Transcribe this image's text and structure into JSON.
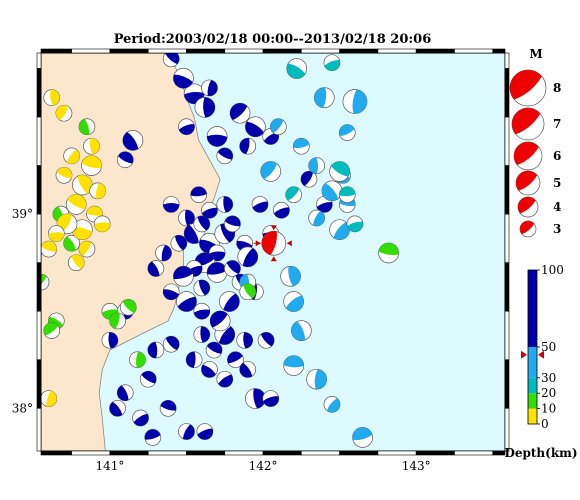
{
  "title": "Period:2003/02/18 00:00--2013/02/18 20:06",
  "map": {
    "lon_range": [
      140.55,
      143.58
    ],
    "lat_range": [
      37.78,
      39.83
    ],
    "lon_ticks": [
      {
        "value": 141,
        "label": "141°"
      },
      {
        "value": 142,
        "label": "142°"
      },
      {
        "value": 143,
        "label": "143°"
      }
    ],
    "lat_ticks": [
      {
        "value": 39,
        "label": "39°"
      },
      {
        "value": 38,
        "label": "38°"
      }
    ],
    "land_color": "#fde7cc",
    "sea_color": "#dcfaff",
    "coastline": [
      [
        141.38,
        39.83
      ],
      [
        141.45,
        39.72
      ],
      [
        141.5,
        39.6
      ],
      [
        141.55,
        39.5
      ],
      [
        141.58,
        39.38
      ],
      [
        141.65,
        39.28
      ],
      [
        141.72,
        39.18
      ],
      [
        141.68,
        39.08
      ],
      [
        141.63,
        39.0
      ],
      [
        141.55,
        38.92
      ],
      [
        141.48,
        38.82
      ],
      [
        141.48,
        38.72
      ],
      [
        141.45,
        38.62
      ],
      [
        141.42,
        38.52
      ],
      [
        141.38,
        38.45
      ],
      [
        141.2,
        38.38
      ],
      [
        141.0,
        38.3
      ],
      [
        140.95,
        38.2
      ],
      [
        140.93,
        38.08
      ],
      [
        140.95,
        37.95
      ],
      [
        140.97,
        37.78
      ]
    ]
  },
  "magnitude_legend": {
    "title": "M",
    "entries": [
      {
        "label": "8",
        "magnitude": 8
      },
      {
        "label": "7",
        "magnitude": 7
      },
      {
        "label": "6",
        "magnitude": 6
      },
      {
        "label": "5",
        "magnitude": 5
      },
      {
        "label": "4",
        "magnitude": 4
      },
      {
        "label": "3",
        "magnitude": 3
      }
    ],
    "color": "#ee0000"
  },
  "depth_scale": {
    "title": "Depth(km)",
    "ticks": [
      {
        "value": 100,
        "label": "100"
      },
      {
        "value": 50,
        "label": "50"
      },
      {
        "value": 30,
        "label": "30"
      },
      {
        "value": 20,
        "label": "20"
      },
      {
        "value": 10,
        "label": "10"
      },
      {
        "value": 0,
        "label": "0"
      }
    ],
    "bands": [
      {
        "from": 0,
        "to": 10,
        "color": "#ffe100"
      },
      {
        "from": 10,
        "to": 20,
        "color": "#33dd00"
      },
      {
        "from": 20,
        "to": 30,
        "color": "#00bbbb"
      },
      {
        "from": 30,
        "to": 50,
        "color": "#22aaee"
      },
      {
        "from": 50,
        "to": 100,
        "color": "#0000aa"
      }
    ],
    "marker_depth": 45,
    "marker_color": "#cc0000"
  },
  "chart_data": {
    "type": "scatter",
    "x_unit": "longitude (°E)",
    "y_unit": "latitude (°N)",
    "series": [
      {
        "color": "#0000aa",
        "points": [
          [
            141.55,
            39.62,
            4
          ],
          [
            141.48,
            39.7,
            4
          ],
          [
            141.4,
            39.8,
            3
          ],
          [
            141.62,
            39.55,
            4
          ],
          [
            141.5,
            39.45,
            3
          ],
          [
            141.7,
            39.4,
            4
          ],
          [
            141.75,
            39.3,
            3
          ],
          [
            141.85,
            39.52,
            4
          ],
          [
            141.95,
            39.45,
            4
          ],
          [
            142.05,
            39.4,
            3
          ],
          [
            141.65,
            39.65,
            3
          ],
          [
            141.9,
            39.35,
            3
          ],
          [
            141.15,
            39.38,
            4
          ],
          [
            141.1,
            39.28,
            3
          ],
          [
            141.4,
            39.05,
            3
          ],
          [
            141.5,
            38.98,
            3
          ],
          [
            141.55,
            38.9,
            4
          ],
          [
            141.6,
            38.95,
            3
          ],
          [
            141.65,
            38.85,
            4
          ],
          [
            141.7,
            38.8,
            3
          ],
          [
            141.75,
            38.9,
            4
          ],
          [
            141.8,
            38.95,
            3
          ],
          [
            141.62,
            38.75,
            4
          ],
          [
            141.7,
            38.7,
            4
          ],
          [
            141.8,
            38.72,
            3
          ],
          [
            141.55,
            38.72,
            3
          ],
          [
            141.48,
            38.68,
            4
          ],
          [
            141.6,
            38.62,
            3
          ],
          [
            141.5,
            38.55,
            4
          ],
          [
            141.4,
            38.6,
            3
          ],
          [
            141.3,
            38.72,
            3
          ],
          [
            141.35,
            38.8,
            3
          ],
          [
            141.45,
            38.85,
            3
          ],
          [
            141.58,
            39.1,
            3
          ],
          [
            141.65,
            39.02,
            3
          ],
          [
            141.75,
            39.05,
            3
          ],
          [
            141.88,
            38.85,
            3
          ],
          [
            141.9,
            38.78,
            4
          ],
          [
            141.85,
            38.65,
            3
          ],
          [
            141.95,
            38.6,
            3
          ],
          [
            141.78,
            38.55,
            4
          ],
          [
            141.75,
            38.38,
            4
          ],
          [
            141.68,
            38.3,
            3
          ],
          [
            141.82,
            38.25,
            3
          ],
          [
            141.88,
            38.35,
            3
          ],
          [
            141.72,
            38.45,
            4
          ],
          [
            141.6,
            38.5,
            3
          ],
          [
            141.6,
            38.38,
            3
          ],
          [
            141.65,
            38.2,
            3
          ],
          [
            141.75,
            38.15,
            3
          ],
          [
            141.55,
            38.25,
            3
          ],
          [
            141.9,
            38.2,
            3
          ],
          [
            142.02,
            38.35,
            3
          ],
          [
            141.95,
            38.05,
            4
          ],
          [
            142.05,
            38.05,
            3
          ],
          [
            141.25,
            38.15,
            3
          ],
          [
            141.38,
            38.0,
            3
          ],
          [
            141.2,
            37.95,
            3
          ],
          [
            141.1,
            38.08,
            3
          ],
          [
            141.05,
            38.0,
            3
          ],
          [
            141.28,
            37.85,
            3
          ],
          [
            141.5,
            37.88,
            3
          ],
          [
            141.62,
            37.88,
            3
          ],
          [
            142.05,
            38.9,
            3
          ],
          [
            142.12,
            39.02,
            3
          ],
          [
            142.3,
            39.18,
            3
          ],
          [
            142.4,
            39.05,
            3
          ],
          [
            141.98,
            39.05,
            3
          ],
          [
            141.1,
            38.5,
            3
          ],
          [
            141.0,
            38.35,
            3
          ],
          [
            141.3,
            38.3,
            3
          ],
          [
            141.4,
            38.33,
            3
          ]
        ]
      },
      {
        "color": "#22aaee",
        "points": [
          [
            142.6,
            39.58,
            5
          ],
          [
            142.4,
            39.6,
            4
          ],
          [
            142.1,
            39.45,
            3
          ],
          [
            142.25,
            39.35,
            3
          ],
          [
            142.55,
            39.42,
            3
          ],
          [
            142.05,
            39.22,
            4
          ],
          [
            142.35,
            39.25,
            3
          ],
          [
            142.45,
            39.12,
            4
          ],
          [
            142.52,
            39.2,
            3
          ],
          [
            142.55,
            39.05,
            3
          ],
          [
            142.35,
            38.98,
            3
          ],
          [
            142.5,
            38.92,
            4
          ],
          [
            142.18,
            38.68,
            4
          ],
          [
            142.2,
            38.55,
            4
          ],
          [
            142.25,
            38.4,
            4
          ],
          [
            141.9,
            38.65,
            3
          ],
          [
            142.35,
            38.15,
            4
          ],
          [
            142.65,
            37.85,
            4
          ],
          [
            142.2,
            38.22,
            4
          ],
          [
            142.45,
            38.02,
            3
          ]
        ]
      },
      {
        "color": "#00bbbb",
        "points": [
          [
            142.22,
            39.75,
            4
          ],
          [
            142.45,
            39.78,
            3
          ],
          [
            142.5,
            39.22,
            4
          ],
          [
            142.55,
            39.1,
            3
          ],
          [
            142.6,
            38.95,
            3
          ],
          [
            142.2,
            39.1,
            3
          ]
        ]
      },
      {
        "color": "#33dd00",
        "points": [
          [
            140.65,
            38.45,
            3
          ],
          [
            141.0,
            38.5,
            3
          ],
          [
            141.12,
            38.52,
            3
          ],
          [
            141.05,
            38.45,
            3
          ],
          [
            140.62,
            38.4,
            3
          ],
          [
            141.18,
            38.25,
            3
          ],
          [
            142.82,
            38.8,
            4
          ],
          [
            141.9,
            38.6,
            3
          ],
          [
            140.85,
            39.45,
            3
          ],
          [
            140.68,
            39.0,
            3
          ],
          [
            140.75,
            38.85,
            3
          ],
          [
            140.55,
            38.65,
            3
          ]
        ]
      },
      {
        "color": "#ffe100",
        "points": [
          [
            140.62,
            39.6,
            3
          ],
          [
            140.7,
            39.52,
            3
          ],
          [
            140.82,
            39.15,
            4
          ],
          [
            140.88,
            39.25,
            4
          ],
          [
            140.78,
            39.05,
            4
          ],
          [
            140.9,
            39.0,
            3
          ],
          [
            140.82,
            38.92,
            4
          ],
          [
            140.72,
            38.95,
            4
          ],
          [
            140.85,
            38.82,
            3
          ],
          [
            140.78,
            38.75,
            3
          ],
          [
            140.65,
            38.9,
            3
          ],
          [
            140.6,
            38.82,
            3
          ],
          [
            140.92,
            39.12,
            3
          ],
          [
            140.95,
            38.95,
            3
          ],
          [
            140.7,
            39.2,
            3
          ],
          [
            140.75,
            39.3,
            3
          ],
          [
            140.88,
            39.35,
            3
          ],
          [
            140.6,
            38.05,
            3
          ]
        ]
      },
      {
        "color": "#ee0000",
        "points": [
          [
            142.07,
            38.85,
            5
          ]
        ]
      }
    ]
  }
}
